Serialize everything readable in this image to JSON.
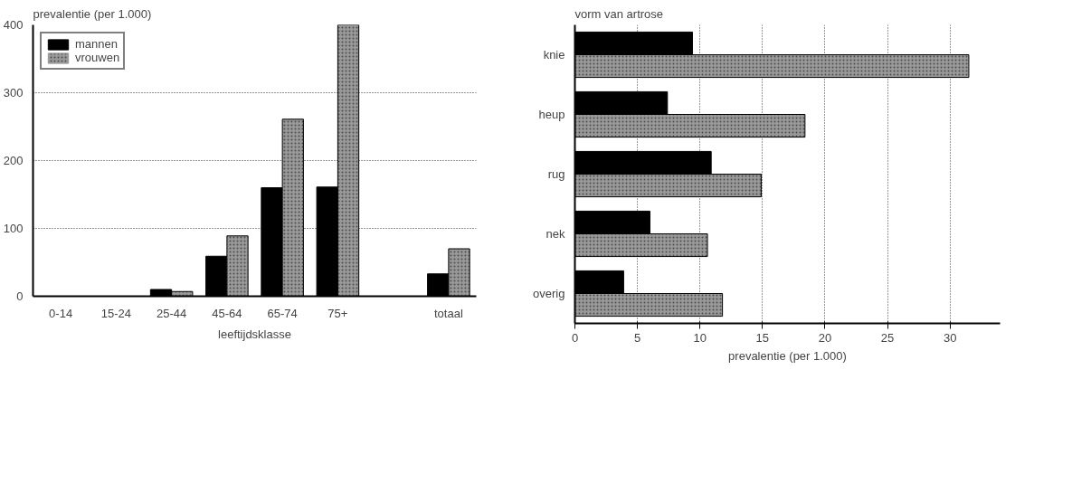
{
  "chart_data": [
    {
      "type": "bar",
      "ylabel": "prevalentie (per 1.000)",
      "xlabel": "leeftijdsklasse",
      "categories": [
        "0-14",
        "15-24",
        "25-44",
        "45-64",
        "65-74",
        "75+",
        null,
        "totaal"
      ],
      "series": [
        {
          "name": "mannen",
          "color": "#000000",
          "values": [
            0,
            0,
            10,
            59,
            160,
            161,
            null,
            33
          ]
        },
        {
          "name": "vrouwen",
          "color": "#999999",
          "values": [
            0,
            0,
            7,
            89,
            261,
            400,
            null,
            70
          ]
        }
      ],
      "ylim": [
        0,
        400
      ],
      "yticks": [
        0,
        100,
        200,
        300,
        400
      ],
      "grid": "y",
      "legend": "top left"
    },
    {
      "type": "bar",
      "orientation": "horizontal",
      "ylabel": "vorm van artrose",
      "xlabel": "prevalentie (per 1.000)",
      "categories": [
        "knie",
        "heup",
        "rug",
        "nek",
        "overig"
      ],
      "series": [
        {
          "color": "#000000",
          "values": [
            9.4,
            7.4,
            10.9,
            6.0,
            3.9
          ]
        },
        {
          "color": "#999999",
          "values": [
            31.5,
            18.4,
            14.9,
            10.6,
            11.8
          ]
        }
      ],
      "xlim": [
        0,
        34
      ],
      "xticks": [
        0,
        5,
        10,
        15,
        20,
        25,
        30
      ],
      "grid": "x"
    }
  ]
}
